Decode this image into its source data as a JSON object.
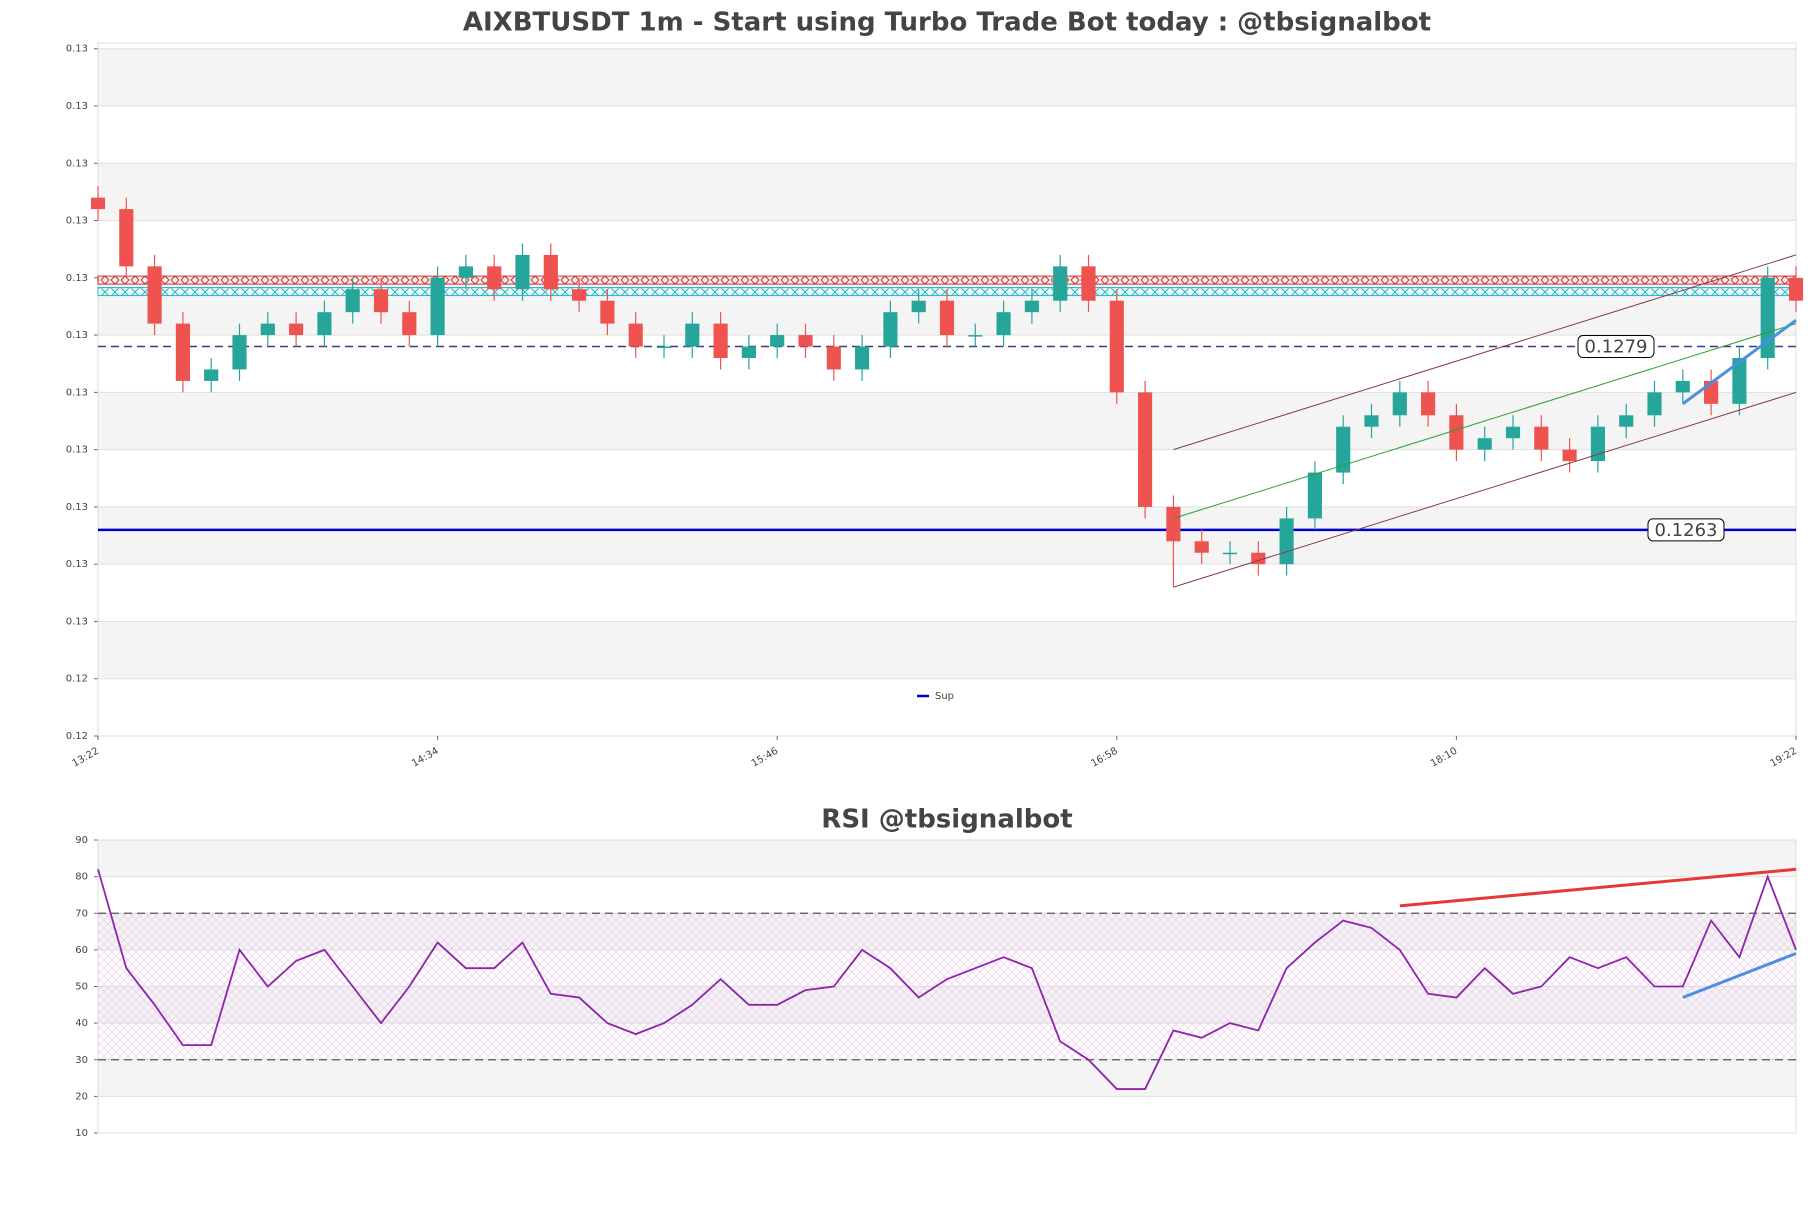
{
  "chart_data": [
    {
      "type": "candlestick",
      "title": "AIXBTUSDT 1m - Start using Turbo Trade Bot today : @tbsignalbot",
      "x": [
        "13:22",
        "13:28",
        "13:34",
        "13:40",
        "13:46",
        "13:52",
        "13:58",
        "14:04",
        "14:10",
        "14:16",
        "14:22",
        "14:28",
        "14:34",
        "14:40",
        "14:46",
        "14:52",
        "14:58",
        "15:04",
        "15:10",
        "15:16",
        "15:22",
        "15:28",
        "15:34",
        "15:40",
        "15:46",
        "15:52",
        "15:58",
        "16:04",
        "16:10",
        "16:16",
        "16:22",
        "16:28",
        "16:34",
        "16:40",
        "16:46",
        "16:52",
        "16:58",
        "17:04",
        "17:10",
        "17:16",
        "17:22",
        "17:28",
        "17:34",
        "17:40",
        "17:46",
        "17:52",
        "17:58",
        "18:04",
        "18:10",
        "18:16",
        "18:22",
        "18:28",
        "18:34",
        "18:40",
        "18:46",
        "18:52",
        "18:58",
        "19:04",
        "19:10",
        "19:16",
        "19:22"
      ],
      "open": [
        0.1292,
        0.1291,
        0.1286,
        0.1281,
        0.1276,
        0.1277,
        0.128,
        0.1281,
        0.128,
        0.1282,
        0.1284,
        0.1282,
        0.128,
        0.1285,
        0.1286,
        0.1284,
        0.1287,
        0.1284,
        0.1283,
        0.1281,
        0.1279,
        0.1279,
        0.1281,
        0.1278,
        0.1279,
        0.128,
        0.1279,
        0.1277,
        0.1279,
        0.1282,
        0.1283,
        0.128,
        0.128,
        0.1282,
        0.1283,
        0.1286,
        0.1283,
        0.1275,
        0.1265,
        0.1262,
        0.1261,
        0.1261,
        0.126,
        0.1264,
        0.1268,
        0.1272,
        0.1273,
        0.1275,
        0.1273,
        0.127,
        0.1271,
        0.1272,
        0.127,
        0.1269,
        0.1272,
        0.1273,
        0.1275,
        0.1276,
        0.1274,
        0.1278,
        0.1285
      ],
      "high": [
        0.1293,
        0.1292,
        0.1287,
        0.1282,
        0.1278,
        0.1281,
        0.1282,
        0.1282,
        0.1283,
        0.1285,
        0.1285,
        0.1283,
        0.1286,
        0.1287,
        0.1287,
        0.1288,
        0.1288,
        0.1285,
        0.1284,
        0.1282,
        0.128,
        0.1282,
        0.1282,
        0.128,
        0.1281,
        0.1281,
        0.128,
        0.128,
        0.1283,
        0.1284,
        0.1284,
        0.1281,
        0.1283,
        0.1284,
        0.1287,
        0.1287,
        0.1284,
        0.1276,
        0.1266,
        0.1263,
        0.1262,
        0.1262,
        0.1265,
        0.1269,
        0.1273,
        0.1274,
        0.1276,
        0.1276,
        0.1274,
        0.1272,
        0.1273,
        0.1273,
        0.1271,
        0.1273,
        0.1274,
        0.1276,
        0.1277,
        0.1277,
        0.1279,
        0.1286,
        0.1286
      ],
      "low": [
        0.129,
        0.1285,
        0.128,
        0.1275,
        0.1275,
        0.1276,
        0.1279,
        0.1279,
        0.1279,
        0.1281,
        0.1281,
        0.1279,
        0.1279,
        0.1284,
        0.1283,
        0.1283,
        0.1283,
        0.1282,
        0.128,
        0.1278,
        0.1278,
        0.1278,
        0.1277,
        0.1277,
        0.1278,
        0.1278,
        0.1276,
        0.1276,
        0.1278,
        0.1281,
        0.1279,
        0.1279,
        0.1279,
        0.1281,
        0.1282,
        0.1282,
        0.1274,
        0.1264,
        0.1258,
        0.126,
        0.126,
        0.1259,
        0.1259,
        0.1263,
        0.1267,
        0.1271,
        0.1272,
        0.1272,
        0.1269,
        0.1269,
        0.127,
        0.1269,
        0.1268,
        0.1268,
        0.1271,
        0.1272,
        0.1274,
        0.1273,
        0.1273,
        0.1277,
        0.1282
      ],
      "close": [
        0.1291,
        0.1286,
        0.1281,
        0.1276,
        0.1277,
        0.128,
        0.1281,
        0.128,
        0.1282,
        0.1284,
        0.1282,
        0.128,
        0.1285,
        0.1286,
        0.1284,
        0.1287,
        0.1284,
        0.1283,
        0.1281,
        0.1279,
        0.1279,
        0.1281,
        0.1278,
        0.1279,
        0.128,
        0.1279,
        0.1277,
        0.1279,
        0.1282,
        0.1283,
        0.128,
        0.128,
        0.1282,
        0.1283,
        0.1286,
        0.1283,
        0.1275,
        0.1265,
        0.1262,
        0.1261,
        0.1261,
        0.126,
        0.1264,
        0.1268,
        0.1272,
        0.1273,
        0.1275,
        0.1273,
        0.127,
        0.1271,
        0.1272,
        0.127,
        0.1269,
        0.1272,
        0.1273,
        0.1275,
        0.1276,
        0.1274,
        0.1278,
        0.1285,
        0.1283
      ],
      "up_color": "#26a69a",
      "down_color": "#ef5350",
      "xlim": [
        "13:22",
        "19:22"
      ],
      "xticks": [
        "13:22",
        "14:34",
        "15:46",
        "16:58",
        "18:10",
        "19:22"
      ],
      "ylim": [
        0.1245,
        0.13055
      ],
      "yticks": [
        {
          "value": 0.1245,
          "label": "0.12"
        },
        {
          "value": 0.125,
          "label": "0.12"
        },
        {
          "value": 0.1255,
          "label": "0.13"
        },
        {
          "value": 0.126,
          "label": "0.13"
        },
        {
          "value": 0.1265,
          "label": "0.13"
        },
        {
          "value": 0.127,
          "label": "0.13"
        },
        {
          "value": 0.1275,
          "label": "0.13"
        },
        {
          "value": 0.128,
          "label": "0.13"
        },
        {
          "value": 0.1285,
          "label": "0.13"
        },
        {
          "value": 0.129,
          "label": "0.13"
        },
        {
          "value": 0.1295,
          "label": "0.13"
        },
        {
          "value": 0.13,
          "label": "0.13"
        },
        {
          "value": 0.1305,
          "label": "0.13"
        }
      ],
      "grid": true,
      "zones": [
        {
          "value": 0.12848,
          "color": "#d62728"
        },
        {
          "value": 0.12838,
          "color": "#17becf"
        }
      ],
      "levels": [
        {
          "value": 0.1279,
          "color": "#3a3a8c",
          "style": "dashed"
        },
        {
          "name": "Sup",
          "value": 0.1263,
          "color": "#0000cc",
          "style": "solid"
        }
      ],
      "legend": "lower center",
      "trendlines": [
        {
          "x": [
            "17:10",
            "19:22"
          ],
          "y": [
            0.127,
            0.1287
          ],
          "color": "#8b3a4a"
        },
        {
          "x": [
            "17:10",
            "19:22"
          ],
          "y": [
            0.1264,
            0.1281
          ],
          "color": "#2ca02c"
        },
        {
          "x": [
            "17:10",
            "19:22"
          ],
          "y": [
            0.1258,
            0.1275
          ],
          "color": "#8b3a4a"
        },
        {
          "x": [
            "18:58",
            "19:22"
          ],
          "y": [
            0.1274,
            0.12813
          ],
          "color": "#4a90e2",
          "width": 3
        }
      ]
    },
    {
      "type": "line",
      "title": "RSI @tbsignalbot",
      "x": [
        "13:22",
        "13:28",
        "13:34",
        "13:40",
        "13:46",
        "13:52",
        "13:58",
        "14:04",
        "14:10",
        "14:16",
        "14:22",
        "14:28",
        "14:34",
        "14:40",
        "14:46",
        "14:52",
        "14:58",
        "15:04",
        "15:10",
        "15:16",
        "15:22",
        "15:28",
        "15:34",
        "15:40",
        "15:46",
        "15:52",
        "15:58",
        "16:04",
        "16:10",
        "16:16",
        "16:22",
        "16:28",
        "16:34",
        "16:40",
        "16:46",
        "16:52",
        "16:58",
        "17:04",
        "17:10",
        "17:16",
        "17:22",
        "17:28",
        "17:34",
        "17:40",
        "17:46",
        "17:52",
        "17:58",
        "18:04",
        "18:10",
        "18:16",
        "18:22",
        "18:28",
        "18:34",
        "18:40",
        "18:46",
        "18:52",
        "18:58",
        "19:04",
        "19:10",
        "19:16",
        "19:22"
      ],
      "values": [
        82,
        55,
        45,
        34,
        34,
        60,
        50,
        57,
        60,
        50,
        40,
        50,
        62,
        55,
        55,
        62,
        48,
        47,
        40,
        37,
        40,
        45,
        52,
        45,
        45,
        49,
        50,
        60,
        55,
        47,
        52,
        55,
        58,
        55,
        35,
        30,
        22,
        22,
        38,
        36,
        40,
        38,
        55,
        62,
        68,
        66,
        60,
        48,
        47,
        55,
        48,
        50,
        58,
        55,
        58,
        50,
        50,
        68,
        58,
        80,
        60
      ],
      "color": "#8e24aa",
      "xlim": [
        "13:22",
        "19:22"
      ],
      "ylim": [
        10,
        90
      ],
      "yticks": [
        10,
        20,
        30,
        40,
        50,
        60,
        70,
        80,
        90
      ],
      "grid": true,
      "hlines": [
        70,
        30
      ],
      "band": [
        30,
        70
      ],
      "trendlines": [
        {
          "x": [
            "17:58",
            "19:22"
          ],
          "y": [
            72,
            82
          ],
          "color": "#e53935",
          "width": 3
        },
        {
          "x": [
            "18:58",
            "19:22"
          ],
          "y": [
            47,
            59
          ],
          "color": "#4a90e2",
          "width": 3
        }
      ]
    }
  ]
}
